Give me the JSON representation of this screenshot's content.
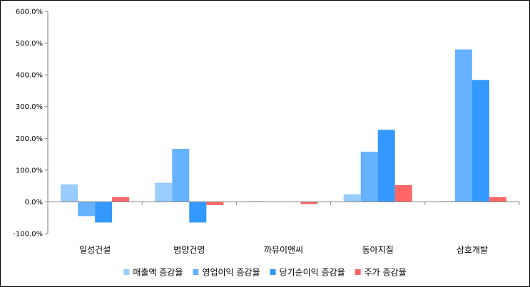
{
  "chart_data": {
    "type": "bar",
    "title": "",
    "xlabel": "",
    "ylabel": "",
    "categories": [
      "일성건설",
      "범양건영",
      "까뮤이앤씨",
      "동아지질",
      "삼호개발"
    ],
    "ylim": [
      -100,
      600
    ],
    "yticks": [
      -100,
      0,
      100,
      200,
      300,
      400,
      500,
      600
    ],
    "ytick_labels": [
      "-100.0%",
      "0.0%",
      "100.0%",
      "200.0%",
      "300.0%",
      "400.0%",
      "500.0%",
      "600.0%"
    ],
    "grid": false,
    "legend_position": "bottom",
    "series": [
      {
        "name": "매출액 증감율",
        "color": "#99ccff",
        "values": [
          55,
          60,
          2,
          24,
          2
        ]
      },
      {
        "name": "영업이익 증감율",
        "color": "#66b2ff",
        "values": [
          -45,
          167,
          0,
          158,
          480
        ]
      },
      {
        "name": "당기순이익 증감율",
        "color": "#3399ff",
        "values": [
          -65,
          -65,
          0,
          227,
          384
        ]
      },
      {
        "name": "주가 증감율",
        "color": "#ff6666",
        "values": [
          15,
          -10,
          -7,
          53,
          15
        ]
      }
    ]
  }
}
